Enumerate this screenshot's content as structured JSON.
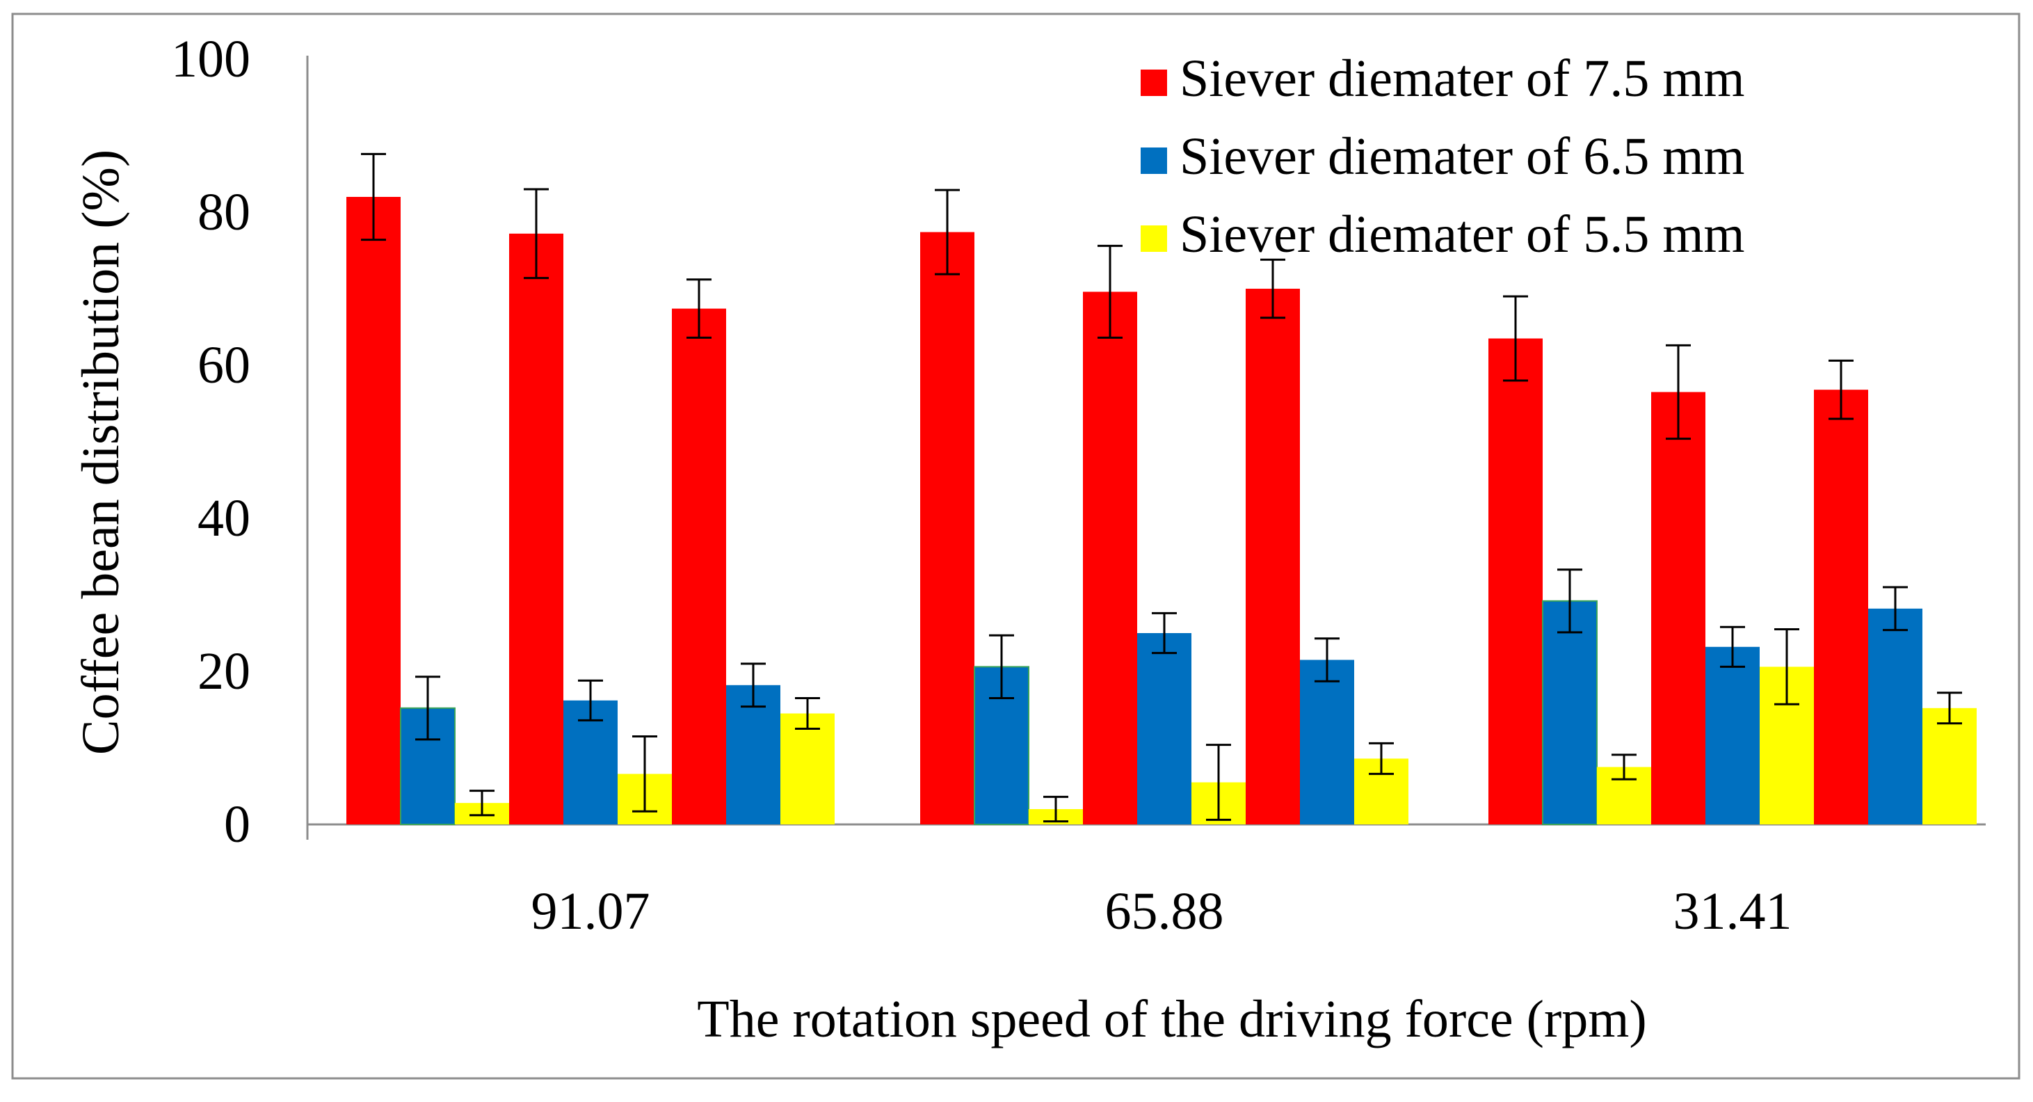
{
  "chart_data": {
    "type": "bar",
    "title": "",
    "xlabel": "The rotation speed of the driving force (rpm)",
    "ylabel": "Coffee bean distribution (%)",
    "ylim": [
      0,
      100
    ],
    "yticks": [
      0,
      20,
      40,
      60,
      80,
      100
    ],
    "grid": false,
    "legend_position": "top-right",
    "categories": [
      "91.07",
      "65.88",
      "31.41"
    ],
    "bars_per_category_group": 3,
    "series": [
      {
        "name": "Siever diemater of 7.5 mm",
        "color": "#ff0000",
        "values": [
          [
            82,
            77.2,
            67.4
          ],
          [
            77.4,
            69.6,
            70
          ],
          [
            63.5,
            56.5,
            56.8
          ]
        ],
        "errors": [
          [
            5.6,
            5.8,
            3.8
          ],
          [
            5.5,
            6,
            3.8
          ],
          [
            5.5,
            6.1,
            3.8
          ]
        ]
      },
      {
        "name": "Siever diemater of 6.5 mm",
        "color": "#0070c0",
        "values": [
          [
            15.2,
            16.2,
            18.2
          ],
          [
            20.6,
            25,
            21.5
          ],
          [
            29.2,
            23.2,
            28.2
          ]
        ],
        "errors": [
          [
            4.1,
            2.6,
            2.8
          ],
          [
            4.1,
            2.6,
            2.8
          ],
          [
            4.1,
            2.6,
            2.8
          ]
        ]
      },
      {
        "name": "Siever diemater of 5.5 mm",
        "color": "#ffff00",
        "values": [
          [
            2.8,
            6.6,
            14.5
          ],
          [
            2,
            5.5,
            8.6
          ],
          [
            7.5,
            20.6,
            15.2
          ]
        ],
        "errors": [
          [
            1.6,
            4.9,
            2
          ],
          [
            1.6,
            4.9,
            2
          ],
          [
            1.6,
            4.9,
            2
          ]
        ]
      }
    ]
  }
}
